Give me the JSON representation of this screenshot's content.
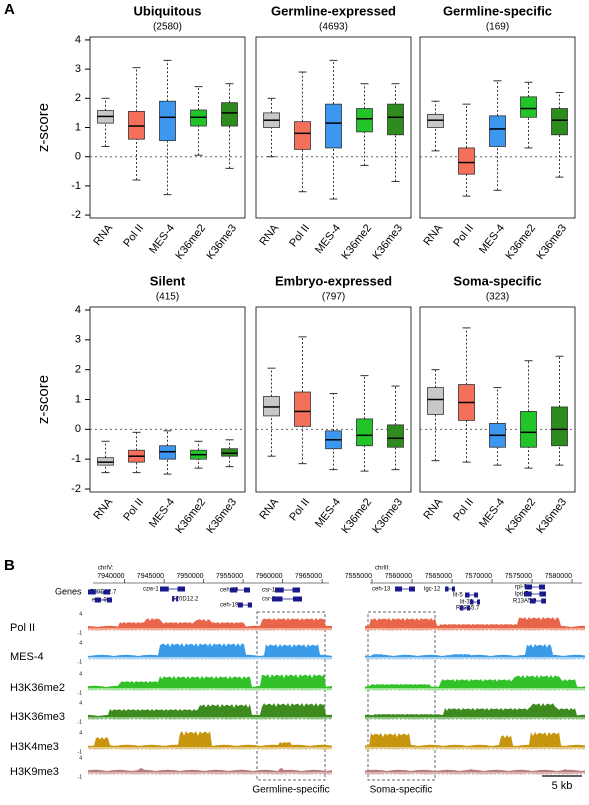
{
  "panel_labels": [
    "A",
    "B"
  ],
  "chart_data": [
    {
      "type": "box",
      "title": "Ubiquitous",
      "subtitle": "(2580)",
      "y_label": "z-score",
      "categories": [
        "RNA",
        "Pol II",
        "MES-4",
        "K36me2",
        "K36me3"
      ],
      "colors": [
        "#c8c8c8",
        "#f4705a",
        "#3b97ef",
        "#22c42a",
        "#2e8b1e"
      ],
      "ylim": [
        -2.1,
        4.1
      ],
      "yticks": [
        -2,
        -1,
        0,
        1,
        2,
        3,
        4
      ],
      "hline": 0,
      "boxes": [
        {
          "whislo": 0.35,
          "q1": 1.15,
          "med": 1.38,
          "q3": 1.58,
          "whishi": 2.0
        },
        {
          "whislo": -0.8,
          "q1": 0.6,
          "med": 1.05,
          "q3": 1.55,
          "whishi": 3.05
        },
        {
          "whislo": -1.3,
          "q1": 0.55,
          "med": 1.35,
          "q3": 1.9,
          "whishi": 3.3
        },
        {
          "whislo": 0.05,
          "q1": 1.05,
          "med": 1.35,
          "q3": 1.6,
          "whishi": 2.4
        },
        {
          "whislo": -0.4,
          "q1": 1.05,
          "med": 1.5,
          "q3": 1.85,
          "whishi": 2.5
        }
      ]
    },
    {
      "type": "box",
      "title": "Germline-expressed",
      "subtitle": "(4693)",
      "categories": [
        "RNA",
        "Pol II",
        "MES-4",
        "K36me2",
        "K36me3"
      ],
      "colors": [
        "#c8c8c8",
        "#f4705a",
        "#3b97ef",
        "#22c42a",
        "#2e8b1e"
      ],
      "ylim": [
        -2.1,
        4.1
      ],
      "hline": 0,
      "boxes": [
        {
          "whislo": 0,
          "q1": 1.0,
          "med": 1.25,
          "q3": 1.5,
          "whishi": 2.0
        },
        {
          "whislo": -1.2,
          "q1": 0.25,
          "med": 0.8,
          "q3": 1.2,
          "whishi": 2.9
        },
        {
          "whislo": -1.45,
          "q1": 0.3,
          "med": 1.15,
          "q3": 1.8,
          "whishi": 3.3
        },
        {
          "whislo": -0.3,
          "q1": 0.85,
          "med": 1.3,
          "q3": 1.65,
          "whishi": 2.5
        },
        {
          "whislo": -0.85,
          "q1": 0.75,
          "med": 1.35,
          "q3": 1.8,
          "whishi": 2.5
        }
      ]
    },
    {
      "type": "box",
      "title": "Germline-specific",
      "subtitle": "(169)",
      "categories": [
        "RNA",
        "Pol II",
        "MES-4",
        "K36me2",
        "K36me3"
      ],
      "colors": [
        "#c8c8c8",
        "#f4705a",
        "#3b97ef",
        "#22c42a",
        "#2e8b1e"
      ],
      "ylim": [
        -2.1,
        4.1
      ],
      "hline": 0,
      "boxes": [
        {
          "whislo": 0.2,
          "q1": 1.0,
          "med": 1.25,
          "q3": 1.45,
          "whishi": 1.9
        },
        {
          "whislo": -1.35,
          "q1": -0.6,
          "med": -0.2,
          "q3": 0.3,
          "whishi": 1.8
        },
        {
          "whislo": -1.15,
          "q1": 0.35,
          "med": 0.95,
          "q3": 1.4,
          "whishi": 2.6
        },
        {
          "whislo": 0.3,
          "q1": 1.35,
          "med": 1.65,
          "q3": 2.05,
          "whishi": 2.55
        },
        {
          "whislo": -0.7,
          "q1": 0.75,
          "med": 1.25,
          "q3": 1.65,
          "whishi": 2.2
        }
      ]
    },
    {
      "type": "box",
      "title": "Silent",
      "subtitle": "(415)",
      "y_label": "z-score",
      "categories": [
        "RNA",
        "Pol II",
        "MES-4",
        "K36me2",
        "K36me3"
      ],
      "colors": [
        "#c8c8c8",
        "#f4705a",
        "#3b97ef",
        "#22c42a",
        "#2e8b1e"
      ],
      "ylim": [
        -2.1,
        4.1
      ],
      "yticks": [
        -2,
        -1,
        0,
        1,
        2,
        3,
        4
      ],
      "hline": 0,
      "boxes": [
        {
          "whislo": -1.45,
          "q1": -1.2,
          "med": -1.1,
          "q3": -0.95,
          "whishi": -0.4
        },
        {
          "whislo": -1.45,
          "q1": -1.1,
          "med": -0.9,
          "q3": -0.7,
          "whishi": -0.1
        },
        {
          "whislo": -1.5,
          "q1": -1.0,
          "med": -0.75,
          "q3": -0.55,
          "whishi": -0.05
        },
        {
          "whislo": -1.3,
          "q1": -1.0,
          "med": -0.85,
          "q3": -0.7,
          "whishi": -0.4
        },
        {
          "whislo": -1.25,
          "q1": -0.9,
          "med": -0.8,
          "q3": -0.65,
          "whishi": -0.35
        }
      ]
    },
    {
      "type": "box",
      "title": "Embryo-expressed",
      "subtitle": "(797)",
      "categories": [
        "RNA",
        "Pol II",
        "MES-4",
        "K36me2",
        "K36me3"
      ],
      "colors": [
        "#c8c8c8",
        "#f4705a",
        "#3b97ef",
        "#22c42a",
        "#2e8b1e"
      ],
      "ylim": [
        -2.1,
        4.1
      ],
      "hline": 0,
      "boxes": [
        {
          "whislo": -0.9,
          "q1": 0.45,
          "med": 0.75,
          "q3": 1.1,
          "whishi": 2.05
        },
        {
          "whislo": -1.15,
          "q1": 0.1,
          "med": 0.6,
          "q3": 1.25,
          "whishi": 3.1
        },
        {
          "whislo": -1.35,
          "q1": -0.65,
          "med": -0.35,
          "q3": -0.05,
          "whishi": 1.2
        },
        {
          "whislo": -1.4,
          "q1": -0.55,
          "med": -0.2,
          "q3": 0.35,
          "whishi": 1.8
        },
        {
          "whislo": -1.35,
          "q1": -0.6,
          "med": -0.3,
          "q3": 0.15,
          "whishi": 1.45
        }
      ]
    },
    {
      "type": "box",
      "title": "Soma-specific",
      "subtitle": "(323)",
      "categories": [
        "RNA",
        "Pol II",
        "MES-4",
        "K36me2",
        "K36me3"
      ],
      "colors": [
        "#c8c8c8",
        "#f4705a",
        "#3b97ef",
        "#22c42a",
        "#2e8b1e"
      ],
      "ylim": [
        -2.1,
        4.1
      ],
      "hline": 0,
      "boxes": [
        {
          "whislo": -1.05,
          "q1": 0.5,
          "med": 1.0,
          "q3": 1.4,
          "whishi": 2.0
        },
        {
          "whislo": -1.1,
          "q1": 0.3,
          "med": 0.9,
          "q3": 1.5,
          "whishi": 3.4
        },
        {
          "whislo": -1.2,
          "q1": -0.6,
          "med": -0.2,
          "q3": 0.2,
          "whishi": 1.4
        },
        {
          "whislo": -1.3,
          "q1": -0.6,
          "med": -0.1,
          "q3": 0.6,
          "whishi": 2.3
        },
        {
          "whislo": -1.2,
          "q1": -0.55,
          "med": 0.0,
          "q3": 0.75,
          "whishi": 2.45
        }
      ]
    }
  ],
  "browser": {
    "genes_label": "Genes",
    "track_scale": {
      "max": 4,
      "min": -1
    },
    "tracks": [
      "Pol II",
      "MES-4",
      "H3K36me2",
      "H3K36me3",
      "H3K4me3",
      "H3K9me3"
    ],
    "regions": [
      {
        "chrom": "chrIV:",
        "xlim": [
          7935375,
          7966250
        ],
        "ticks": [
          7940000,
          7945000,
          7950000,
          7955000,
          7960000,
          7965000
        ],
        "genes": [
          "F20D12.7",
          "exc-9",
          "czw-1",
          "F20D12.2",
          "ceh-19",
          "ceh-19",
          "csr-1",
          "csr-1"
        ],
        "annotation": "Germline-specific"
      },
      {
        "chrom": "chrIII:",
        "xlim": [
          7554125,
          7581625
        ],
        "ticks": [
          7555000,
          7560000,
          7565000,
          7570000,
          7575000,
          7580000
        ],
        "genes": [
          "ceh-13",
          "lgc-12",
          "lit-5",
          "lit-32",
          "R13A5.7",
          "rpl-9",
          "lpd-7",
          "R13A5.9"
        ],
        "annotation": "Soma-specific"
      }
    ],
    "scale_bar": "5 kb"
  }
}
